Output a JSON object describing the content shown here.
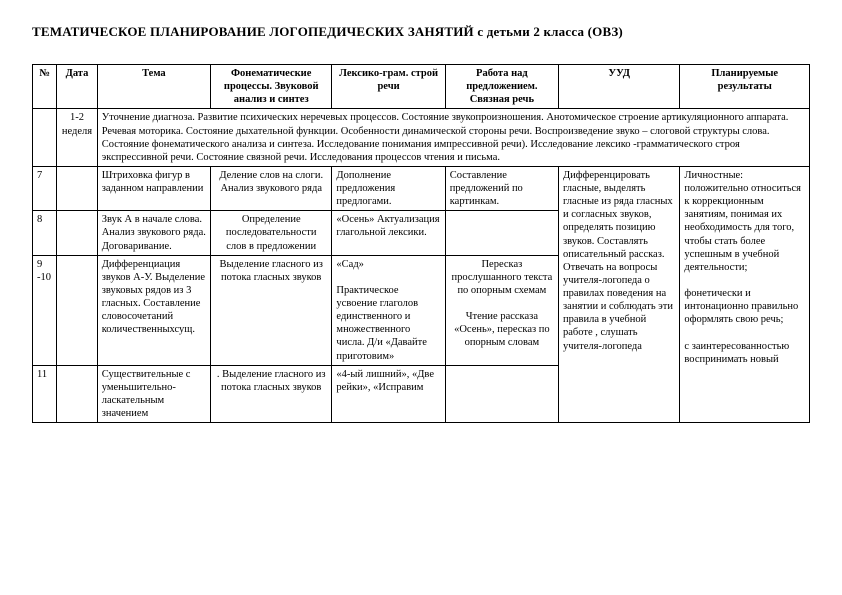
{
  "title": "ТЕМАТИЧЕСКОЕ ПЛАНИРОВАНИЕ ЛОГОПЕДИЧЕСКИХ ЗАНЯТИЙ  с детьми 2 класса (ОВЗ)",
  "headers": {
    "num": "№",
    "date": "Дата",
    "tema": "Тема",
    "fon": "Фонематические процессы. Звуковой анализ и синтез",
    "lex": "Лексико-грам. строй речи",
    "rab": "Работа над предложением. Связная речь",
    "uud": "УУД",
    "plan": "Планируемые результаты"
  },
  "row_diag": {
    "date": "1-2 неделя",
    "text": "Уточнение диагноза. Развитие психических неречевых процессов. Состояние звукопроизношения. Анотомическое строение артикуляционного аппарата. Речевая моторика. Состояние дыхательной функции. Особенности динамической стороны речи. Воспроизведение звуко – слоговой структуры слова. Состояние фонематического анализа и синтеза. Исследование понимания импрессивной речи). Исследование лексико  -грамматического строя экспрессивной речи. Состояние связной речи. Исследования процессов чтения и письма."
  },
  "rows": {
    "r7": {
      "num": "7",
      "tema": "Штриховка фигур в заданном направлении",
      "fon": "Деление слов на слоги.  Анализ звукового ряда",
      "lex": "Дополнение предложения предлогами.",
      "rab": "Составление предложений по картинкам."
    },
    "r8": {
      "num": "8",
      "tema": "Звук А в начале слова. Анализ звукового ряда. Договаривание.",
      "fon": "Определение последовательности слов в предложении",
      "lex": "«Осень» Актуализация глагольной лексики."
    },
    "r9": {
      "num": "9 -10",
      "tema": "Дифференциация звуков А-У. Выделение звуковых рядов из 3 гласных. Составление словосочетаний количественныхсущ.",
      "fon": "Выделение гласного из потока гласных звуков",
      "lex": "«Сад»\n\nПрактическое усвоение глаголов единственного и множественного числа.  Д/и «Давайте приготовим»",
      "rab": "Пересказ прослушанного текста по опорным схемам\n\nЧтение рассказа «Осень», пересказ по опорным словам"
    },
    "r11": {
      "num": "11",
      "tema": "Существительные с уменьшительно-ласкательным значением",
      "fon": ". Выделение гласного из потока гласных звуков",
      "lex": "«4-ый лишний», «Две рейки», «Исправим"
    }
  },
  "uud_text": "Дифференцировать гласные, выделять гласные из ряда гласных и согласных звуков, определять позицию звуков. Составлять описательный рассказ.\nОтвечать на вопросы учителя-логопеда о правилах поведения на занятии и соблюдать эти правила в учебной работе , слушать учителя-логопеда",
  "plan_text": "Личностные: положительно относиться к коррекционным занятиям, понимая их необходимость для того, чтобы стать более успешным в учебной деятельности;\n\nфонетически и интонационно правильно оформлять свою речь;\n\nс заинтересованностью воспринимать новый"
}
